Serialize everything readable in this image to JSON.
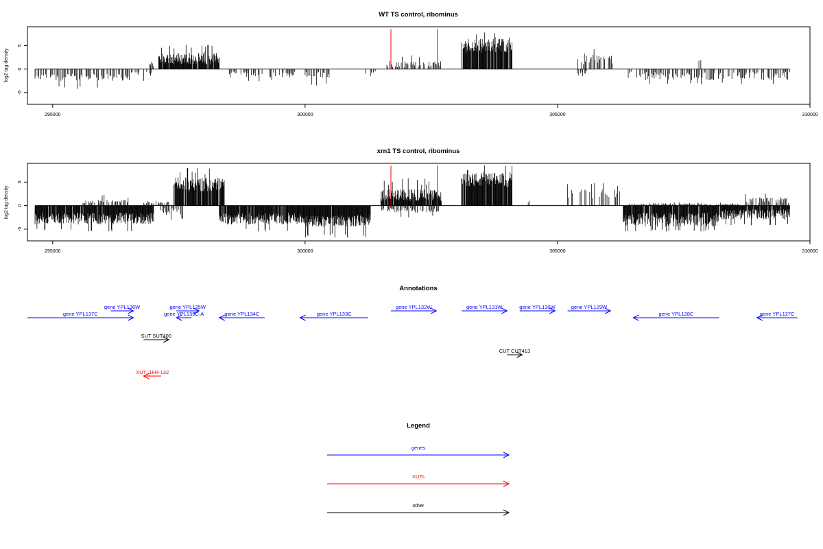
{
  "chart_data": [
    {
      "type": "bar",
      "title": "WT TS control, ribominus",
      "ylabel": "log2 tag density",
      "xlabel": "",
      "xlim": [
        294500,
        310000
      ],
      "ylim": [
        -7.5,
        9
      ],
      "x_ticks": [
        295000,
        300000,
        305000,
        310000
      ],
      "y_ticks": [
        -5,
        0,
        5
      ],
      "grid": false,
      "baseline": 0,
      "series": [
        {
          "strand": "minus",
          "regions": [
            {
              "start": 294650,
              "end": 296500,
              "low": -2.5,
              "high": -1.0,
              "peak": -4.2
            },
            {
              "start": 296500,
              "end": 297000,
              "low": -1.5,
              "high": -0.5,
              "peak": -2.5
            },
            {
              "start": 298500,
              "end": 299800,
              "low": -1.8,
              "high": -0.5,
              "peak": -2.6
            },
            {
              "start": 300000,
              "end": 300500,
              "low": -1.8,
              "high": -0.5,
              "peak": -3.5
            },
            {
              "start": 301200,
              "end": 301400,
              "low": -1.0,
              "high": -0.4,
              "peak": -1.5
            },
            {
              "start": 305400,
              "end": 305600,
              "low": -1.0,
              "high": -0.4,
              "peak": -1.5
            },
            {
              "start": 306400,
              "end": 309600,
              "low": -2.4,
              "high": -0.6,
              "peak": -3.2
            }
          ]
        },
        {
          "strand": "plus",
          "regions": [
            {
              "start": 296900,
              "end": 297000,
              "low": 0.5,
              "high": 1.2,
              "peak": 1.5
            },
            {
              "start": 297100,
              "end": 298300,
              "low": 1.0,
              "high": 3.5,
              "peak": 5.2
            },
            {
              "start": 301600,
              "end": 302700,
              "low": 0.3,
              "high": 1.8,
              "peak": 2.9
            },
            {
              "start": 303100,
              "end": 304100,
              "low": 3.5,
              "high": 6.5,
              "peak": 7.8
            },
            {
              "start": 305400,
              "end": 306100,
              "low": 1.0,
              "high": 3.0,
              "peak": 4.2
            },
            {
              "start": 307800,
              "end": 307850,
              "low": 1.5,
              "high": 1.8,
              "peak": 1.9
            }
          ]
        }
      ],
      "markers": [
        {
          "x": 301700,
          "y_top": 8.5,
          "color": "#ff0000"
        },
        {
          "x": 302620,
          "y_top": 8.5,
          "color": "#ff0000"
        }
      ]
    },
    {
      "type": "bar",
      "title": "xrn1 TS control, ribominus",
      "ylabel": "log2 tag density",
      "xlabel": "",
      "xlim": [
        294500,
        310000
      ],
      "ylim": [
        -7.5,
        9
      ],
      "x_ticks": [
        295000,
        300000,
        305000,
        310000
      ],
      "y_ticks": [
        -5,
        0,
        5
      ],
      "grid": false,
      "baseline": 0,
      "series": [
        {
          "strand": "minus",
          "regions": [
            {
              "start": 294650,
              "end": 297000,
              "low": -4.0,
              "high": -1.5,
              "peak": -5.5
            },
            {
              "start": 297100,
              "end": 297600,
              "low": -2.0,
              "high": -0.5,
              "peak": -3.0
            },
            {
              "start": 298300,
              "end": 300000,
              "low": -4.0,
              "high": -1.5,
              "peak": -5.5
            },
            {
              "start": 300000,
              "end": 301300,
              "low": -4.5,
              "high": -2.0,
              "peak": -6.8
            },
            {
              "start": 301500,
              "end": 302700,
              "low": -1.5,
              "high": -0.4,
              "peak": -2.5
            },
            {
              "start": 306300,
              "end": 308200,
              "low": -4.5,
              "high": -1.5,
              "peak": -5.5
            },
            {
              "start": 308200,
              "end": 309600,
              "low": -3.0,
              "high": -0.8,
              "peak": -4.2
            }
          ]
        },
        {
          "strand": "plus",
          "regions": [
            {
              "start": 295600,
              "end": 296500,
              "low": 0.5,
              "high": 1.2,
              "peak": 2.3
            },
            {
              "start": 296800,
              "end": 297300,
              "low": 0.3,
              "high": 0.8,
              "peak": 1.0
            },
            {
              "start": 297400,
              "end": 298400,
              "low": 3.0,
              "high": 6.0,
              "peak": 8.0
            },
            {
              "start": 301500,
              "end": 302700,
              "low": 1.0,
              "high": 3.5,
              "peak": 5.8
            },
            {
              "start": 303100,
              "end": 304100,
              "low": 4.0,
              "high": 7.0,
              "peak": 8.6
            },
            {
              "start": 304400,
              "end": 304450,
              "low": 0.6,
              "high": 0.9,
              "peak": 1.0
            },
            {
              "start": 305200,
              "end": 306300,
              "low": 1.5,
              "high": 3.5,
              "peak": 4.8
            },
            {
              "start": 306400,
              "end": 308600,
              "low": 0.2,
              "high": 0.5,
              "peak": 0.7
            },
            {
              "start": 308700,
              "end": 309600,
              "low": 0.5,
              "high": 1.8,
              "peak": 2.5
            }
          ]
        }
      ],
      "markers": [
        {
          "x": 301700,
          "y_top": 8.5,
          "color": "#ff0000"
        },
        {
          "x": 302620,
          "y_top": 8.5,
          "color": "#ff0000"
        }
      ]
    }
  ],
  "annotations": {
    "title": "Annotations",
    "xlim": [
      294500,
      310000
    ],
    "features": [
      {
        "label": "gene YPL137C",
        "start": 294500,
        "end": 296600,
        "strand": "plus",
        "color": "#0000ff",
        "row": 1
      },
      {
        "label": "gene YPL136W",
        "start": 296150,
        "end": 296600,
        "strand": "plus",
        "color": "#0000ff",
        "row": 0
      },
      {
        "label": "gene YPL135W",
        "start": 297450,
        "end": 297900,
        "strand": "plus",
        "color": "#0000ff",
        "row": 0
      },
      {
        "label": "gene YPL135C-A",
        "start": 297450,
        "end": 297750,
        "strand": "minus",
        "color": "#0000ff",
        "row": 1
      },
      {
        "label": "gene YPL134C",
        "start": 298300,
        "end": 299200,
        "strand": "minus",
        "color": "#0000ff",
        "row": 1
      },
      {
        "label": "gene YPL133C",
        "start": 299900,
        "end": 301250,
        "strand": "minus",
        "color": "#0000ff",
        "row": 1
      },
      {
        "label": "gene YPL132W",
        "start": 301700,
        "end": 302600,
        "strand": "plus",
        "color": "#0000ff",
        "row": 0
      },
      {
        "label": "gene YPL131W",
        "start": 303100,
        "end": 304000,
        "strand": "plus",
        "color": "#0000ff",
        "row": 0
      },
      {
        "label": "gene YPL130W",
        "start": 304250,
        "end": 304950,
        "strand": "plus",
        "color": "#0000ff",
        "row": 0
      },
      {
        "label": "gene YPL129W",
        "start": 305200,
        "end": 306050,
        "strand": "plus",
        "color": "#0000ff",
        "row": 0
      },
      {
        "label": "gene YPL128C",
        "start": 306500,
        "end": 308200,
        "strand": "minus",
        "color": "#0000ff",
        "row": 1
      },
      {
        "label": "gene YPL127C",
        "start": 308950,
        "end": 309750,
        "strand": "minus",
        "color": "#0000ff",
        "row": 1
      },
      {
        "label": "SUT SUT400",
        "start": 296800,
        "end": 297300,
        "strand": "plus",
        "color": "#000000",
        "row": 2
      },
      {
        "label": "CUT CUT413",
        "start": 304000,
        "end": 304300,
        "strand": "plus",
        "color": "#000000",
        "row": 3
      },
      {
        "label": "XUT_16R-132",
        "start": 296800,
        "end": 297150,
        "strand": "minus",
        "color": "#ff0000",
        "row": 4
      }
    ]
  },
  "legend": {
    "title": "Legend",
    "items": [
      {
        "label": "genes",
        "color": "#0000ff"
      },
      {
        "label": "XUTs",
        "color": "#ff0000"
      },
      {
        "label": "other",
        "color": "#000000"
      }
    ]
  }
}
